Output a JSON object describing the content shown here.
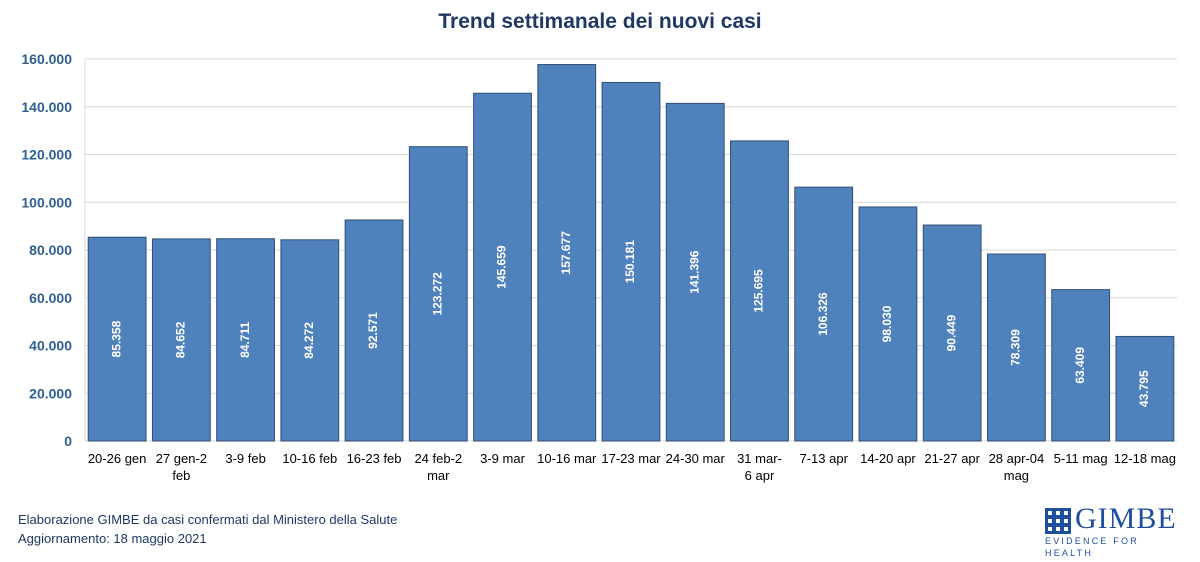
{
  "title": "Trend settimanale dei nuovi casi",
  "footer": {
    "source": "Elaborazione GIMBE da casi confermati dal Ministero della Salute",
    "updated": "Aggiornamento:  18 maggio 2021"
  },
  "logo": {
    "name": "GIMBE",
    "tagline": "EVIDENCE FOR HEALTH"
  },
  "colors": {
    "bar": "#4f81bd",
    "title": "#1f3864",
    "axis_labels": "#2f5f8f"
  },
  "chart_data": {
    "type": "bar",
    "title": "Trend settimanale dei nuovi casi",
    "xlabel": "",
    "ylabel": "",
    "ylim": [
      0,
      160000
    ],
    "grid": true,
    "yticks": [
      "0",
      "20.000",
      "40.000",
      "60.000",
      "80.000",
      "100.000",
      "120.000",
      "140.000",
      "160.000"
    ],
    "categories": [
      [
        "20-26 gen"
      ],
      [
        "27 gen-2",
        "feb"
      ],
      [
        "3-9 feb"
      ],
      [
        "10-16 feb"
      ],
      [
        "16-23 feb"
      ],
      [
        "24 feb-2",
        "mar"
      ],
      [
        "3-9 mar"
      ],
      [
        "10-16 mar"
      ],
      [
        "17-23 mar"
      ],
      [
        "24-30 mar"
      ],
      [
        "31 mar-",
        "6 apr"
      ],
      [
        "7-13 apr"
      ],
      [
        "14-20 apr"
      ],
      [
        "21-27 apr"
      ],
      [
        "28 apr-04",
        "mag"
      ],
      [
        "5-11 mag"
      ],
      [
        "12-18 mag"
      ]
    ],
    "values": [
      85358,
      84652,
      84711,
      84272,
      92571,
      123272,
      145659,
      157677,
      150181,
      141396,
      125695,
      106326,
      98030,
      90449,
      78309,
      63409,
      43795
    ],
    "data_labels": [
      "85.358",
      "84.652",
      "84.711",
      "84.272",
      "92.571",
      "123.272",
      "145.659",
      "157.677",
      "150.181",
      "141.396",
      "125.695",
      "106.326",
      "98.030",
      "90.449",
      "78.309",
      "63.409",
      "43.795"
    ]
  }
}
